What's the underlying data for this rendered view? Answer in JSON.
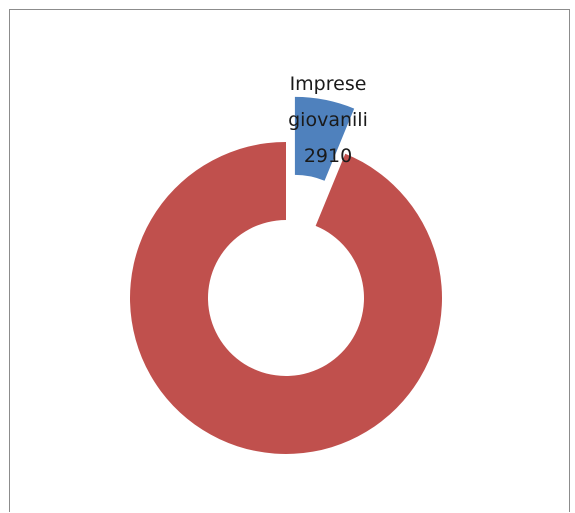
{
  "chart_data": {
    "type": "pie",
    "style": "exploded-doughnut",
    "title": "",
    "slices": [
      {
        "label": "Imprese giovanili",
        "value": 2910,
        "value_text": "2910",
        "color": "#4f81bd",
        "exploded": true,
        "show_label": true
      },
      {
        "label": "",
        "value": 44000,
        "color": "#c0504d",
        "exploded": false,
        "show_label": false
      }
    ],
    "legend": "none"
  }
}
